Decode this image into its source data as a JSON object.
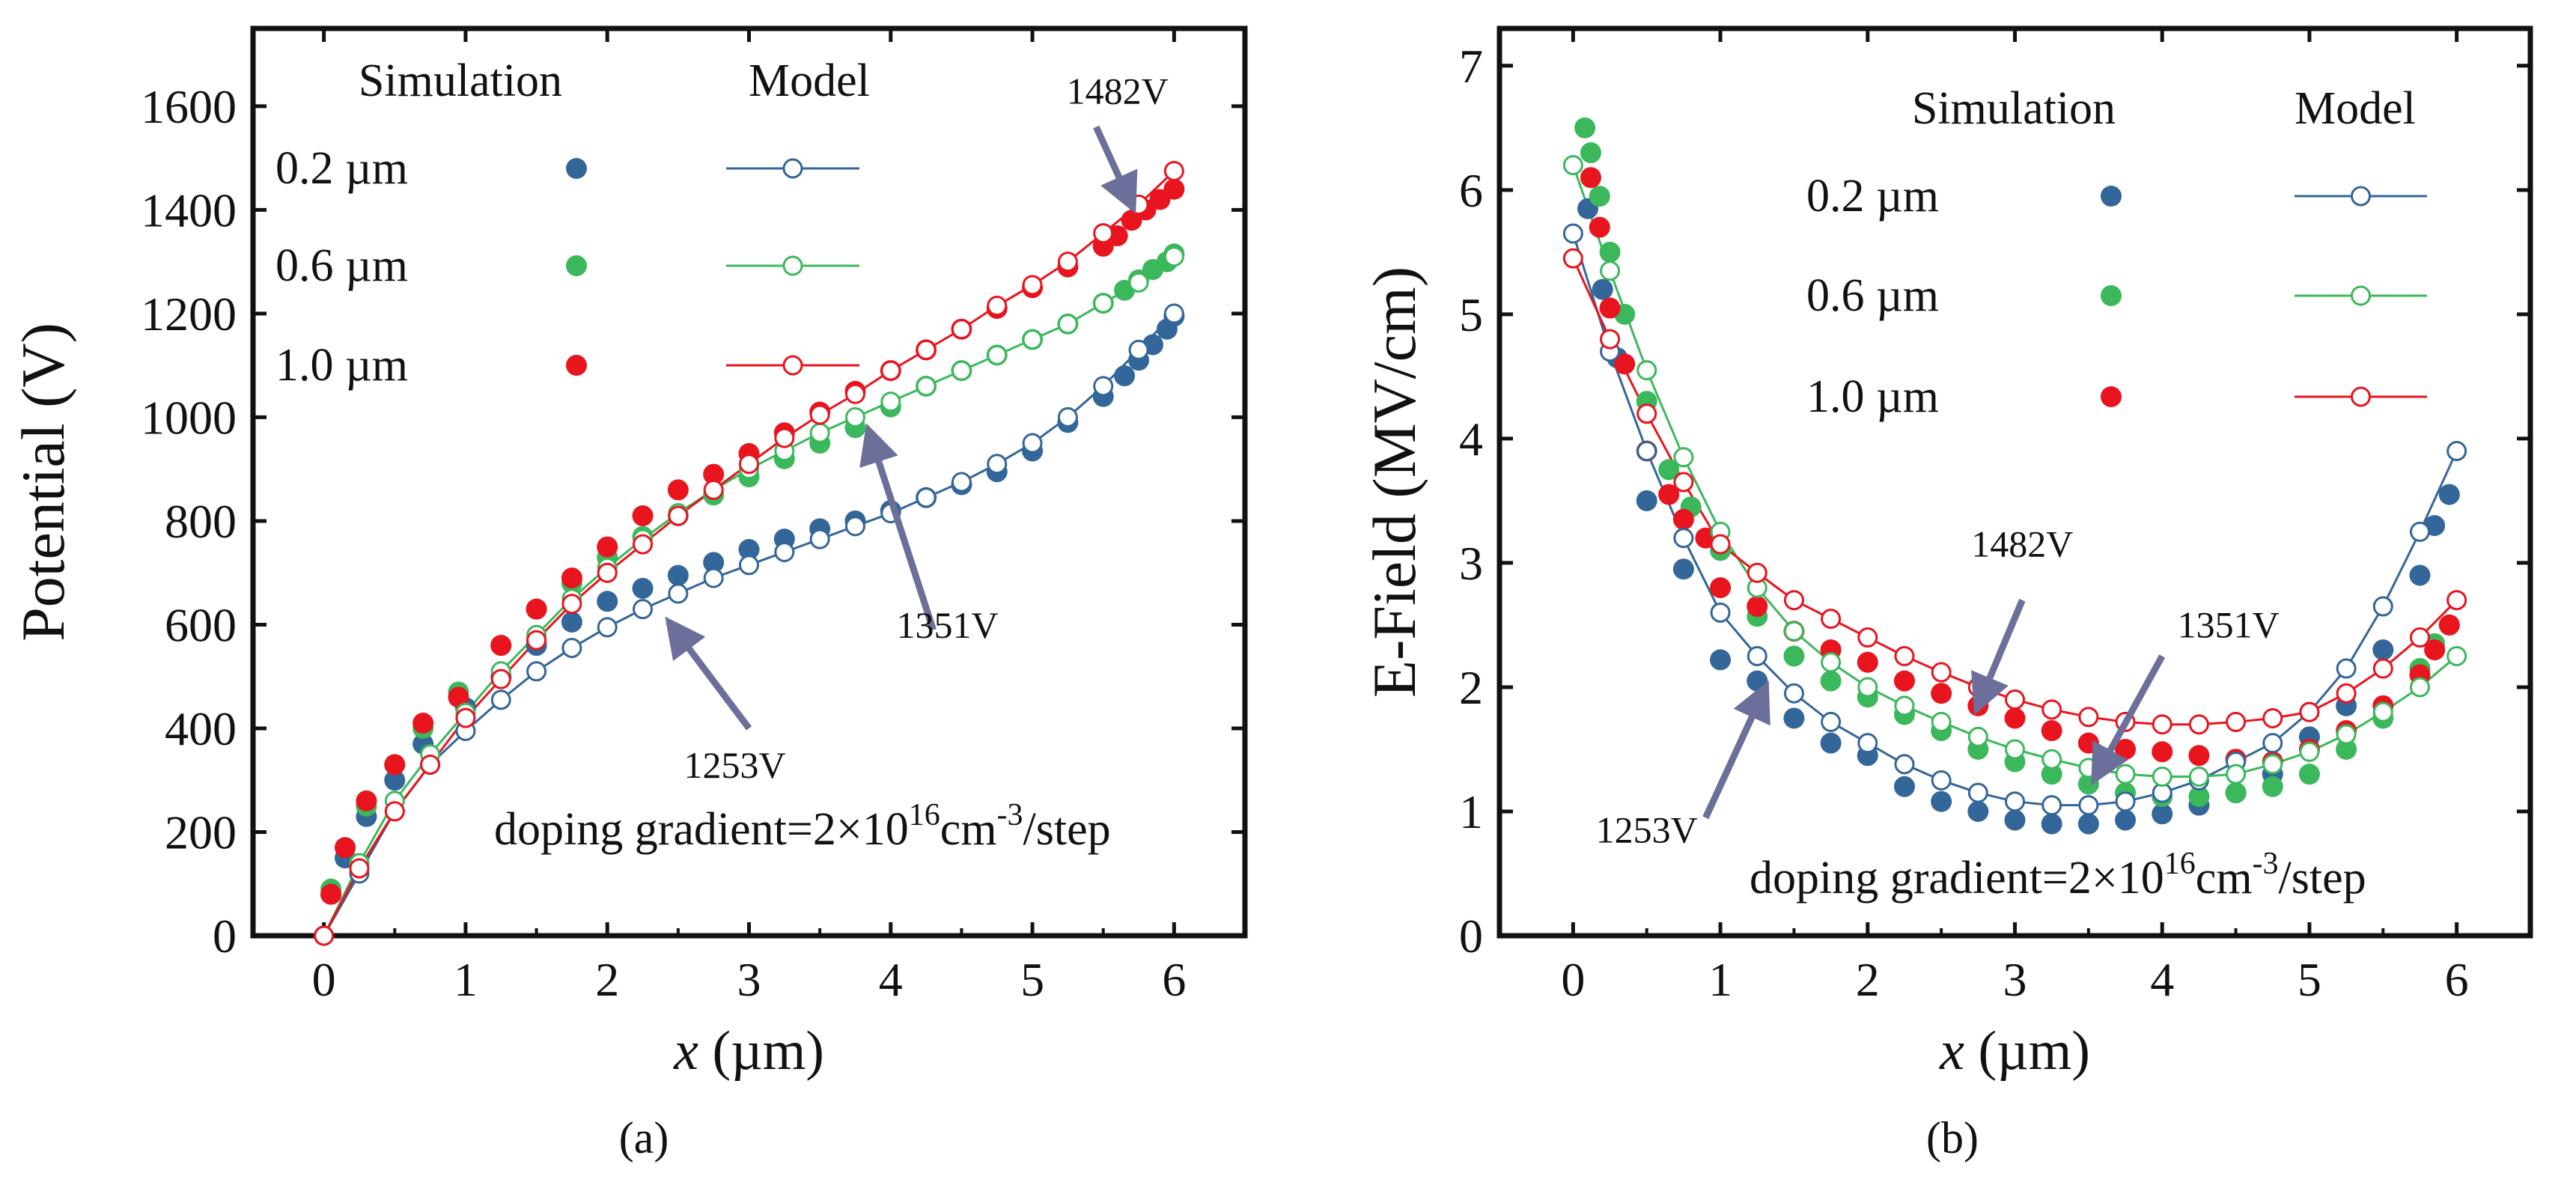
{
  "figure_caption": [
    "(a)",
    "(b)"
  ],
  "legend_header": {
    "simulation": "Simulation",
    "model": "Model"
  },
  "series_colors": {
    "0.2 µm": "#336699",
    "0.6 µm": "#3CB85C",
    "1.0 µm": "#E8141E"
  },
  "annotation_color": "#6B6F9A",
  "chart_data": [
    {
      "type": "scatter",
      "panel_label": "a",
      "caption": "(a)",
      "title": "",
      "xlabel_var": "x",
      "xlabel_unit": " (µm)",
      "ylabel": "Potential (V)",
      "xlim": [
        -0.5,
        6.5
      ],
      "ylim": [
        0,
        1750
      ],
      "xticks": [
        0,
        1,
        2,
        3,
        4,
        5,
        6
      ],
      "yticks": [
        0,
        200,
        400,
        600,
        800,
        1000,
        1200,
        1400,
        1600
      ],
      "legend_labels": [
        "0.2 µm",
        "0.6 µm",
        "1.0 µm"
      ],
      "series": [
        {
          "name": "0.2 µm",
          "kind": "simulation",
          "color": "#336699",
          "x": [
            0.05,
            0.15,
            0.3,
            0.5,
            0.7,
            1,
            1.25,
            1.5,
            1.75,
            2,
            2.25,
            2.5,
            2.75,
            3,
            3.25,
            3.5,
            3.75,
            4,
            4.25,
            4.5,
            4.75,
            5,
            5.25,
            5.5,
            5.65,
            5.75,
            5.85,
            5.95,
            6
          ],
          "y": [
            80,
            150,
            230,
            300,
            370,
            440,
            500,
            560,
            605,
            645,
            670,
            695,
            720,
            745,
            765,
            785,
            800,
            820,
            845,
            870,
            895,
            935,
            990,
            1040,
            1080,
            1110,
            1140,
            1170,
            1195
          ]
        },
        {
          "name": "0.6 µm",
          "kind": "simulation",
          "color": "#3CB85C",
          "x": [
            0.05,
            0.15,
            0.3,
            0.5,
            0.7,
            0.95,
            1.25,
            1.5,
            1.75,
            2,
            2.25,
            2.5,
            2.75,
            3,
            3.25,
            3.5,
            3.75,
            4,
            4.25,
            4.5,
            4.75,
            5,
            5.25,
            5.5,
            5.65,
            5.75,
            5.85,
            5.95,
            6
          ],
          "y": [
            90,
            170,
            250,
            330,
            400,
            470,
            560,
            630,
            680,
            730,
            770,
            810,
            850,
            885,
            920,
            950,
            980,
            1020,
            1060,
            1090,
            1120,
            1150,
            1180,
            1220,
            1245,
            1265,
            1285,
            1300,
            1315
          ]
        },
        {
          "name": "1.0 µm",
          "kind": "simulation",
          "color": "#E8141E",
          "x": [
            0.05,
            0.15,
            0.3,
            0.5,
            0.7,
            0.95,
            1.25,
            1.5,
            1.75,
            2,
            2.25,
            2.5,
            2.75,
            3,
            3.25,
            3.5,
            3.75,
            4,
            4.25,
            4.5,
            4.75,
            5,
            5.25,
            5.5,
            5.6,
            5.7,
            5.8,
            5.9,
            6
          ],
          "y": [
            80,
            170,
            260,
            330,
            410,
            460,
            560,
            630,
            690,
            750,
            810,
            860,
            890,
            930,
            970,
            1010,
            1050,
            1090,
            1130,
            1170,
            1210,
            1250,
            1290,
            1330,
            1350,
            1380,
            1400,
            1420,
            1440
          ]
        },
        {
          "name": "0.2 µm",
          "kind": "model",
          "color": "#336699",
          "x": [
            0,
            0.25,
            0.5,
            0.75,
            1,
            1.25,
            1.5,
            1.75,
            2,
            2.25,
            2.5,
            2.75,
            3,
            3.25,
            3.5,
            3.75,
            4,
            4.25,
            4.5,
            4.75,
            5,
            5.25,
            5.5,
            5.75,
            6
          ],
          "y": [
            0,
            120,
            240,
            330,
            395,
            455,
            510,
            555,
            595,
            630,
            660,
            690,
            715,
            740,
            765,
            790,
            815,
            845,
            875,
            910,
            950,
            1000,
            1060,
            1130,
            1200
          ]
        },
        {
          "name": "0.6 µm",
          "kind": "model",
          "color": "#3CB85C",
          "x": [
            0,
            0.25,
            0.5,
            0.75,
            1,
            1.25,
            1.5,
            1.75,
            2,
            2.25,
            2.5,
            2.75,
            3,
            3.25,
            3.5,
            3.75,
            4,
            4.25,
            4.5,
            4.75,
            5,
            5.25,
            5.5,
            5.75,
            6
          ],
          "y": [
            0,
            140,
            260,
            350,
            430,
            510,
            580,
            650,
            710,
            765,
            815,
            860,
            900,
            935,
            970,
            1000,
            1030,
            1060,
            1090,
            1120,
            1150,
            1180,
            1220,
            1260,
            1310
          ]
        },
        {
          "name": "1.0 µm",
          "kind": "model",
          "color": "#E8141E",
          "x": [
            0,
            0.25,
            0.5,
            0.75,
            1,
            1.25,
            1.5,
            1.75,
            2,
            2.25,
            2.5,
            2.75,
            3,
            3.25,
            3.5,
            3.75,
            4,
            4.25,
            4.5,
            4.75,
            5,
            5.25,
            5.5,
            5.75,
            6
          ],
          "y": [
            0,
            130,
            240,
            330,
            420,
            495,
            570,
            640,
            700,
            755,
            810,
            860,
            910,
            960,
            1005,
            1045,
            1090,
            1130,
            1170,
            1215,
            1255,
            1300,
            1355,
            1410,
            1475
          ]
        }
      ],
      "annotations": [
        {
          "text": "1482V",
          "arrow_from": [
            5.45,
            1560
          ],
          "arrow_to": [
            5.7,
            1410
          ],
          "label_at": [
            5.6,
            1605
          ]
        },
        {
          "text": "1351V",
          "arrow_from": [
            4.3,
            590
          ],
          "arrow_to": [
            3.85,
            970
          ],
          "label_at": [
            4.4,
            575
          ]
        },
        {
          "text": "1253V",
          "arrow_from": [
            3.0,
            400
          ],
          "arrow_to": [
            2.45,
            600
          ],
          "label_at": [
            2.9,
            305
          ]
        }
      ],
      "text_note": {
        "prefix": "doping gradient=2×10",
        "sup1": "16",
        "mid": "cm",
        "sup2": "-3",
        "suffix": "/step"
      }
    },
    {
      "type": "scatter",
      "panel_label": "b",
      "caption": "(b)",
      "title": "",
      "xlabel_var": "x",
      "xlabel_unit": " (µm)",
      "ylabel": "E-Field (MV/cm)",
      "xlim": [
        -0.5,
        6.5
      ],
      "ylim": [
        0,
        7.3
      ],
      "xticks": [
        0,
        1,
        2,
        3,
        4,
        5,
        6
      ],
      "yticks": [
        0,
        1,
        2,
        3,
        4,
        5,
        6,
        7
      ],
      "legend_labels": [
        "0.2 µm",
        "0.6 µm",
        "1.0 µm"
      ],
      "series": [
        {
          "name": "0.2 µm",
          "kind": "simulation",
          "color": "#336699",
          "x": [
            0.1,
            0.2,
            0.3,
            0.5,
            0.75,
            1,
            1.25,
            1.5,
            1.75,
            2,
            2.25,
            2.5,
            2.75,
            3,
            3.25,
            3.5,
            3.75,
            4,
            4.25,
            4.5,
            4.75,
            5,
            5.25,
            5.5,
            5.75,
            5.85,
            5.95
          ],
          "y": [
            5.85,
            5.2,
            4.65,
            3.5,
            2.95,
            2.22,
            2.05,
            1.75,
            1.55,
            1.45,
            1.2,
            1.08,
            1.0,
            0.93,
            0.9,
            0.9,
            0.93,
            0.98,
            1.05,
            1.15,
            1.3,
            1.6,
            1.85,
            2.3,
            2.9,
            3.3,
            3.55
          ]
        },
        {
          "name": "0.6 µm",
          "kind": "simulation",
          "color": "#3CB85C",
          "x": [
            0.08,
            0.12,
            0.18,
            0.25,
            0.35,
            0.5,
            0.65,
            0.8,
            1,
            1.25,
            1.5,
            1.75,
            2,
            2.25,
            2.5,
            2.75,
            3,
            3.25,
            3.5,
            3.75,
            4,
            4.25,
            4.5,
            4.75,
            5,
            5.25,
            5.5,
            5.75,
            5.85,
            5.95
          ],
          "y": [
            6.5,
            6.3,
            5.95,
            5.5,
            5.0,
            4.3,
            3.75,
            3.45,
            3.1,
            2.57,
            2.25,
            2.05,
            1.92,
            1.78,
            1.65,
            1.5,
            1.4,
            1.3,
            1.22,
            1.15,
            1.12,
            1.12,
            1.15,
            1.2,
            1.3,
            1.5,
            1.75,
            2.15,
            2.35,
            2.5
          ]
        },
        {
          "name": "1.0 µm",
          "kind": "simulation",
          "color": "#E8141E",
          "x": [
            0.12,
            0.18,
            0.25,
            0.35,
            0.5,
            0.65,
            0.75,
            0.9,
            1,
            1.25,
            1.5,
            1.75,
            2,
            2.25,
            2.5,
            2.75,
            3,
            3.25,
            3.5,
            3.75,
            4,
            4.25,
            4.5,
            4.75,
            5,
            5.25,
            5.5,
            5.75,
            5.85,
            5.95
          ],
          "y": [
            6.1,
            5.7,
            5.05,
            4.6,
            3.9,
            3.55,
            3.35,
            3.2,
            2.8,
            2.65,
            2.45,
            2.3,
            2.2,
            2.05,
            1.95,
            1.85,
            1.75,
            1.65,
            1.55,
            1.5,
            1.48,
            1.45,
            1.42,
            1.4,
            1.5,
            1.65,
            1.85,
            2.1,
            2.3,
            2.5
          ]
        },
        {
          "name": "0.2 µm",
          "kind": "model",
          "color": "#336699",
          "x": [
            0,
            0.25,
            0.5,
            0.75,
            1,
            1.25,
            1.5,
            1.75,
            2,
            2.25,
            2.5,
            2.75,
            3,
            3.25,
            3.5,
            3.75,
            4,
            4.25,
            4.5,
            4.75,
            5,
            5.25,
            5.5,
            5.75,
            6
          ],
          "y": [
            5.65,
            4.7,
            3.9,
            3.2,
            2.6,
            2.25,
            1.95,
            1.72,
            1.55,
            1.38,
            1.25,
            1.15,
            1.08,
            1.05,
            1.05,
            1.08,
            1.15,
            1.25,
            1.4,
            1.55,
            1.8,
            2.15,
            2.65,
            3.25,
            3.9
          ]
        },
        {
          "name": "0.6 µm",
          "kind": "model",
          "color": "#3CB85C",
          "x": [
            0,
            0.25,
            0.5,
            0.75,
            1,
            1.25,
            1.5,
            1.75,
            2,
            2.25,
            2.5,
            2.75,
            3,
            3.25,
            3.5,
            3.75,
            4,
            4.25,
            4.5,
            4.75,
            5,
            5.25,
            5.5,
            5.75,
            6
          ],
          "y": [
            6.2,
            5.35,
            4.55,
            3.85,
            3.25,
            2.8,
            2.45,
            2.2,
            2.0,
            1.85,
            1.72,
            1.6,
            1.5,
            1.42,
            1.35,
            1.3,
            1.28,
            1.28,
            1.3,
            1.38,
            1.48,
            1.62,
            1.8,
            2.0,
            2.25
          ]
        },
        {
          "name": "1.0 µm",
          "kind": "model",
          "color": "#E8141E",
          "x": [
            0,
            0.25,
            0.5,
            0.75,
            1,
            1.25,
            1.5,
            1.75,
            2,
            2.25,
            2.5,
            2.75,
            3,
            3.25,
            3.5,
            3.75,
            4,
            4.25,
            4.5,
            4.75,
            5,
            5.25,
            5.5,
            5.75,
            6
          ],
          "y": [
            5.45,
            4.8,
            4.2,
            3.65,
            3.15,
            2.92,
            2.7,
            2.55,
            2.4,
            2.25,
            2.12,
            2.0,
            1.9,
            1.82,
            1.76,
            1.72,
            1.7,
            1.7,
            1.72,
            1.75,
            1.8,
            1.95,
            2.15,
            2.4,
            2.7
          ]
        }
      ],
      "annotations": [
        {
          "text": "1482V",
          "arrow_from": [
            3.05,
            2.7
          ],
          "arrow_to": [
            2.75,
            1.85
          ],
          "label_at": [
            3.05,
            3.05
          ]
        },
        {
          "text": "1351V",
          "arrow_from": [
            4.0,
            2.25
          ],
          "arrow_to": [
            3.55,
            1.28
          ],
          "label_at": [
            4.45,
            2.4
          ]
        },
        {
          "text": "1253V",
          "arrow_from": [
            0.9,
            0.95
          ],
          "arrow_to": [
            1.3,
            1.98
          ],
          "label_at": [
            0.5,
            0.75
          ]
        }
      ],
      "text_note": {
        "prefix": "doping gradient=2×10",
        "sup1": "16",
        "mid": "cm",
        "sup2": "-3",
        "suffix": "/step"
      }
    }
  ]
}
